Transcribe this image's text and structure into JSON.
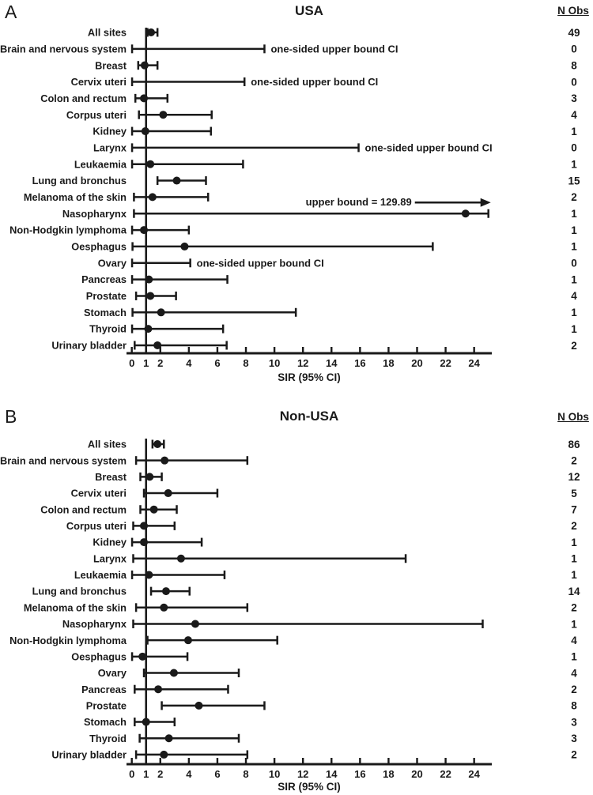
{
  "colors": {
    "foreground": "#1a1a1a",
    "background": "#ffffff"
  },
  "chart_data": [
    {
      "type": "forest",
      "panel_label": "A",
      "title": "USA",
      "xlabel": "SIR (95% CI)",
      "n_obs_header": "N Obs",
      "xlim": [
        0,
        25.2
      ],
      "x_ticks": [
        0,
        1,
        2,
        4,
        6,
        8,
        10,
        12,
        14,
        16,
        18,
        20,
        22,
        24
      ],
      "reference_line": 1,
      "rows": [
        {
          "label": "All sites",
          "sir": 1.35,
          "ci_low": 1.1,
          "ci_high": 1.8,
          "n_obs": 49
        },
        {
          "label": "Brain and nervous system",
          "sir": null,
          "ci_low": 0.02,
          "ci_high": 9.3,
          "n_obs": 0,
          "note": "one-sided upper bound CI"
        },
        {
          "label": "Breast",
          "sir": 0.9,
          "ci_low": 0.45,
          "ci_high": 1.8,
          "n_obs": 8
        },
        {
          "label": "Cervix uteri",
          "sir": null,
          "ci_low": 0.02,
          "ci_high": 7.9,
          "n_obs": 0,
          "note": "one-sided upper bound CI"
        },
        {
          "label": "Colon and rectum",
          "sir": 0.85,
          "ci_low": 0.25,
          "ci_high": 2.5,
          "n_obs": 3
        },
        {
          "label": "Corpus uteri",
          "sir": 2.2,
          "ci_low": 0.5,
          "ci_high": 5.6,
          "n_obs": 4
        },
        {
          "label": "Kidney",
          "sir": 0.95,
          "ci_low": 0.02,
          "ci_high": 5.55,
          "n_obs": 1
        },
        {
          "label": "Larynx",
          "sir": null,
          "ci_low": 0.02,
          "ci_high": 15.9,
          "n_obs": 0,
          "note": "one-sided upper bound CI"
        },
        {
          "label": "Leukaemia",
          "sir": 1.3,
          "ci_low": 0.02,
          "ci_high": 7.8,
          "n_obs": 1
        },
        {
          "label": "Lung and bronchus",
          "sir": 3.15,
          "ci_low": 1.8,
          "ci_high": 5.2,
          "n_obs": 15
        },
        {
          "label": "Melanoma of the skin",
          "sir": 1.45,
          "ci_low": 0.15,
          "ci_high": 5.35,
          "n_obs": 2
        },
        {
          "label": "Nasopharynx",
          "sir": 23.4,
          "ci_low": 0.15,
          "ci_high": 25.0,
          "n_obs": 1,
          "ci_truncated": true,
          "annotation": "upper bound = 129.89"
        },
        {
          "label": "Non-Hodgkin lymphoma",
          "sir": 0.85,
          "ci_low": 0.02,
          "ci_high": 4.0,
          "n_obs": 1
        },
        {
          "label": "Oesphagus",
          "sir": 3.7,
          "ci_low": 0.05,
          "ci_high": 21.1,
          "n_obs": 1
        },
        {
          "label": "Ovary",
          "sir": null,
          "ci_low": 0.02,
          "ci_high": 4.1,
          "n_obs": 0,
          "note": "one-sided upper bound CI"
        },
        {
          "label": "Pancreas",
          "sir": 1.2,
          "ci_low": 0.02,
          "ci_high": 6.7,
          "n_obs": 1
        },
        {
          "label": "Prostate",
          "sir": 1.3,
          "ci_low": 0.3,
          "ci_high": 3.1,
          "n_obs": 4
        },
        {
          "label": "Stomach",
          "sir": 2.05,
          "ci_low": 0.05,
          "ci_high": 11.5,
          "n_obs": 1
        },
        {
          "label": "Thyroid",
          "sir": 1.15,
          "ci_low": 0.02,
          "ci_high": 6.4,
          "n_obs": 1
        },
        {
          "label": "Urinary bladder",
          "sir": 1.8,
          "ci_low": 0.2,
          "ci_high": 6.65,
          "n_obs": 2
        }
      ]
    },
    {
      "type": "forest",
      "panel_label": "B",
      "title": "Non-USA",
      "xlabel": "SIR (95% CI)",
      "n_obs_header": "N Obs",
      "xlim": [
        0,
        25.2
      ],
      "x_ticks": [
        0,
        1,
        2,
        4,
        6,
        8,
        10,
        12,
        14,
        16,
        18,
        20,
        22,
        24
      ],
      "reference_line": 1,
      "rows": [
        {
          "label": "All sites",
          "sir": 1.8,
          "ci_low": 1.45,
          "ci_high": 2.25,
          "n_obs": 86
        },
        {
          "label": "Brain and nervous system",
          "sir": 2.3,
          "ci_low": 0.3,
          "ci_high": 8.1,
          "n_obs": 2
        },
        {
          "label": "Breast",
          "sir": 1.25,
          "ci_low": 0.6,
          "ci_high": 2.1,
          "n_obs": 12
        },
        {
          "label": "Cervix uteri",
          "sir": 2.55,
          "ci_low": 0.85,
          "ci_high": 6.0,
          "n_obs": 5
        },
        {
          "label": "Colon and rectum",
          "sir": 1.55,
          "ci_low": 0.6,
          "ci_high": 3.15,
          "n_obs": 7
        },
        {
          "label": "Corpus uteri",
          "sir": 0.85,
          "ci_low": 0.1,
          "ci_high": 3.0,
          "n_obs": 2
        },
        {
          "label": "Kidney",
          "sir": 0.85,
          "ci_low": 0.02,
          "ci_high": 4.9,
          "n_obs": 1
        },
        {
          "label": "Larynx",
          "sir": 3.45,
          "ci_low": 0.1,
          "ci_high": 19.2,
          "n_obs": 1
        },
        {
          "label": "Leukaemia",
          "sir": 1.2,
          "ci_low": 0.02,
          "ci_high": 6.5,
          "n_obs": 1
        },
        {
          "label": "Lung and bronchus",
          "sir": 2.4,
          "ci_low": 1.35,
          "ci_high": 4.05,
          "n_obs": 14
        },
        {
          "label": "Melanoma of the skin",
          "sir": 2.25,
          "ci_low": 0.3,
          "ci_high": 8.1,
          "n_obs": 2
        },
        {
          "label": "Nasopharynx",
          "sir": 4.45,
          "ci_low": 0.1,
          "ci_high": 24.6,
          "n_obs": 1
        },
        {
          "label": "Non-Hodgkin lymphoma",
          "sir": 3.95,
          "ci_low": 1.1,
          "ci_high": 10.2,
          "n_obs": 4
        },
        {
          "label": "Oesphagus",
          "sir": 0.75,
          "ci_low": 0.02,
          "ci_high": 3.9,
          "n_obs": 1
        },
        {
          "label": "Ovary",
          "sir": 2.95,
          "ci_low": 0.85,
          "ci_high": 7.5,
          "n_obs": 4
        },
        {
          "label": "Pancreas",
          "sir": 1.85,
          "ci_low": 0.2,
          "ci_high": 6.75,
          "n_obs": 2
        },
        {
          "label": "Prostate",
          "sir": 4.7,
          "ci_low": 2.1,
          "ci_high": 9.3,
          "n_obs": 8
        },
        {
          "label": "Stomach",
          "sir": 1.0,
          "ci_low": 0.2,
          "ci_high": 3.0,
          "n_obs": 3
        },
        {
          "label": "Thyroid",
          "sir": 2.6,
          "ci_low": 0.55,
          "ci_high": 7.5,
          "n_obs": 3
        },
        {
          "label": "Urinary bladder",
          "sir": 2.25,
          "ci_low": 0.3,
          "ci_high": 8.1,
          "n_obs": 2
        }
      ]
    }
  ]
}
